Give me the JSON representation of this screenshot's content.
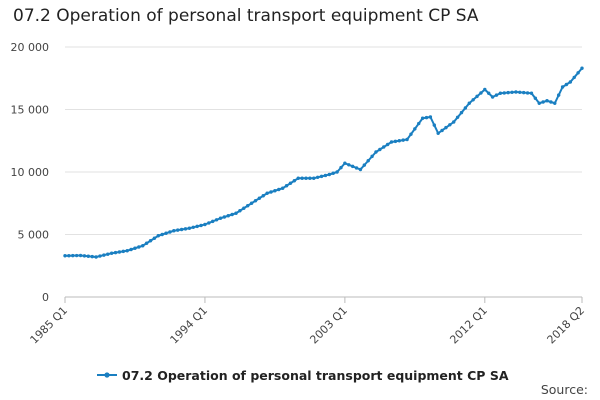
{
  "chart_data": {
    "type": "line",
    "title": "07.2 Operation of personal transport equipment CP SA",
    "xlabel": "",
    "ylabel": "",
    "ylim": [
      0,
      20000
    ],
    "yticks": [
      {
        "value": 0,
        "label": "0"
      },
      {
        "value": 5000,
        "label": "5 000"
      },
      {
        "value": 10000,
        "label": "10 000"
      },
      {
        "value": 15000,
        "label": "15 000"
      },
      {
        "value": 20000,
        "label": "20 000"
      }
    ],
    "xticks": [
      "1985 Q1",
      "1994 Q1",
      "2003 Q1",
      "2012 Q1",
      "2018 Q2"
    ],
    "grid": "horizontal",
    "legend_position": "bottom",
    "series_color": "#1a7fc1",
    "series": [
      {
        "name": "07.2 Operation of personal transport equipment CP SA",
        "points": [
          [
            "1985 Q1",
            3300
          ],
          [
            "1986 Q1",
            3320
          ],
          [
            "1987 Q1",
            3200
          ],
          [
            "1988 Q1",
            3500
          ],
          [
            "1989 Q1",
            3700
          ],
          [
            "1990 Q1",
            4100
          ],
          [
            "1991 Q1",
            4900
          ],
          [
            "1992 Q1",
            5300
          ],
          [
            "1993 Q1",
            5500
          ],
          [
            "1994 Q1",
            5800
          ],
          [
            "1995 Q1",
            6300
          ],
          [
            "1996 Q1",
            6700
          ],
          [
            "1997 Q1",
            7500
          ],
          [
            "1998 Q1",
            8300
          ],
          [
            "1999 Q1",
            8700
          ],
          [
            "2000 Q1",
            9500
          ],
          [
            "2001 Q1",
            9500
          ],
          [
            "2002 Q1",
            9800
          ],
          [
            "2002 Q3",
            10000
          ],
          [
            "2003 Q1",
            10700
          ],
          [
            "2004 Q1",
            10200
          ],
          [
            "2005 Q1",
            11600
          ],
          [
            "2006 Q1",
            12400
          ],
          [
            "2007 Q1",
            12600
          ],
          [
            "2008 Q1",
            14300
          ],
          [
            "2008 Q3",
            14400
          ],
          [
            "2009 Q1",
            13100
          ],
          [
            "2010 Q1",
            14000
          ],
          [
            "2011 Q1",
            15500
          ],
          [
            "2012 Q1",
            16600
          ],
          [
            "2012 Q3",
            16000
          ],
          [
            "2013 Q1",
            16300
          ],
          [
            "2014 Q1",
            16400
          ],
          [
            "2015 Q1",
            16300
          ],
          [
            "2015 Q3",
            15500
          ],
          [
            "2016 Q1",
            15700
          ],
          [
            "2016 Q3",
            15500
          ],
          [
            "2017 Q1",
            16800
          ],
          [
            "2017 Q3",
            17200
          ],
          [
            "2018 Q2",
            18300
          ]
        ]
      }
    ],
    "source_label": "Source:"
  }
}
